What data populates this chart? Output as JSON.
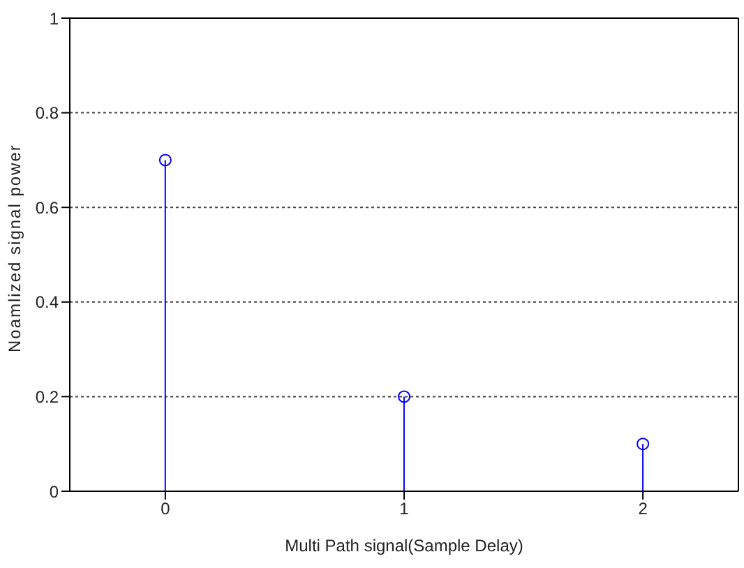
{
  "chart_data": {
    "type": "lollipop",
    "xlabel": "Multi Path signal(Sample Delay)",
    "ylabel": "Noamlized signal power",
    "x": [
      0,
      1,
      2
    ],
    "values": [
      0.7,
      0.2,
      0.1
    ],
    "color": "#0000ff",
    "xlim": [
      -0.4,
      2.4
    ],
    "xticks": [
      0,
      1,
      2
    ],
    "ylim": [
      0,
      1
    ],
    "yticks": [
      0,
      0.2,
      0.4,
      0.6,
      0.8,
      1
    ],
    "grid": "y",
    "marker": "circle"
  }
}
